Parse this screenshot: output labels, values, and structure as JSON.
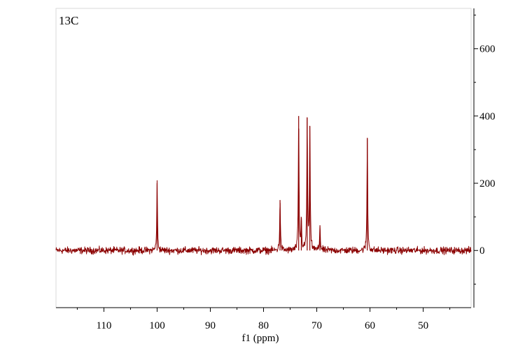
{
  "chart_data": {
    "type": "line",
    "title": "",
    "panel_label": "13C",
    "xlabel": "f1 (ppm)",
    "ylabel": "",
    "x_reversed": true,
    "xlim": [
      119,
      41
    ],
    "ylim": [
      -170,
      720
    ],
    "x_ticks": [
      110,
      100,
      90,
      80,
      70,
      60,
      50
    ],
    "x_tick_labels": [
      "110",
      "100",
      "90",
      "80",
      "70",
      "60",
      "50"
    ],
    "y_ticks": [
      0,
      200,
      400,
      600
    ],
    "y_tick_labels": [
      "0",
      "200",
      "400",
      "600"
    ],
    "grid": false,
    "legend": "none",
    "line_color": "#8b0000",
    "noise_amplitude": 10,
    "peaks": [
      {
        "ppm": 100.0,
        "intensity": 200
      },
      {
        "ppm": 76.9,
        "intensity": 150
      },
      {
        "ppm": 73.4,
        "intensity": 400
      },
      {
        "ppm": 72.9,
        "intensity": 90
      },
      {
        "ppm": 71.8,
        "intensity": 395
      },
      {
        "ppm": 71.3,
        "intensity": 370
      },
      {
        "ppm": 69.4,
        "intensity": 75
      },
      {
        "ppm": 60.5,
        "intensity": 335
      }
    ]
  }
}
